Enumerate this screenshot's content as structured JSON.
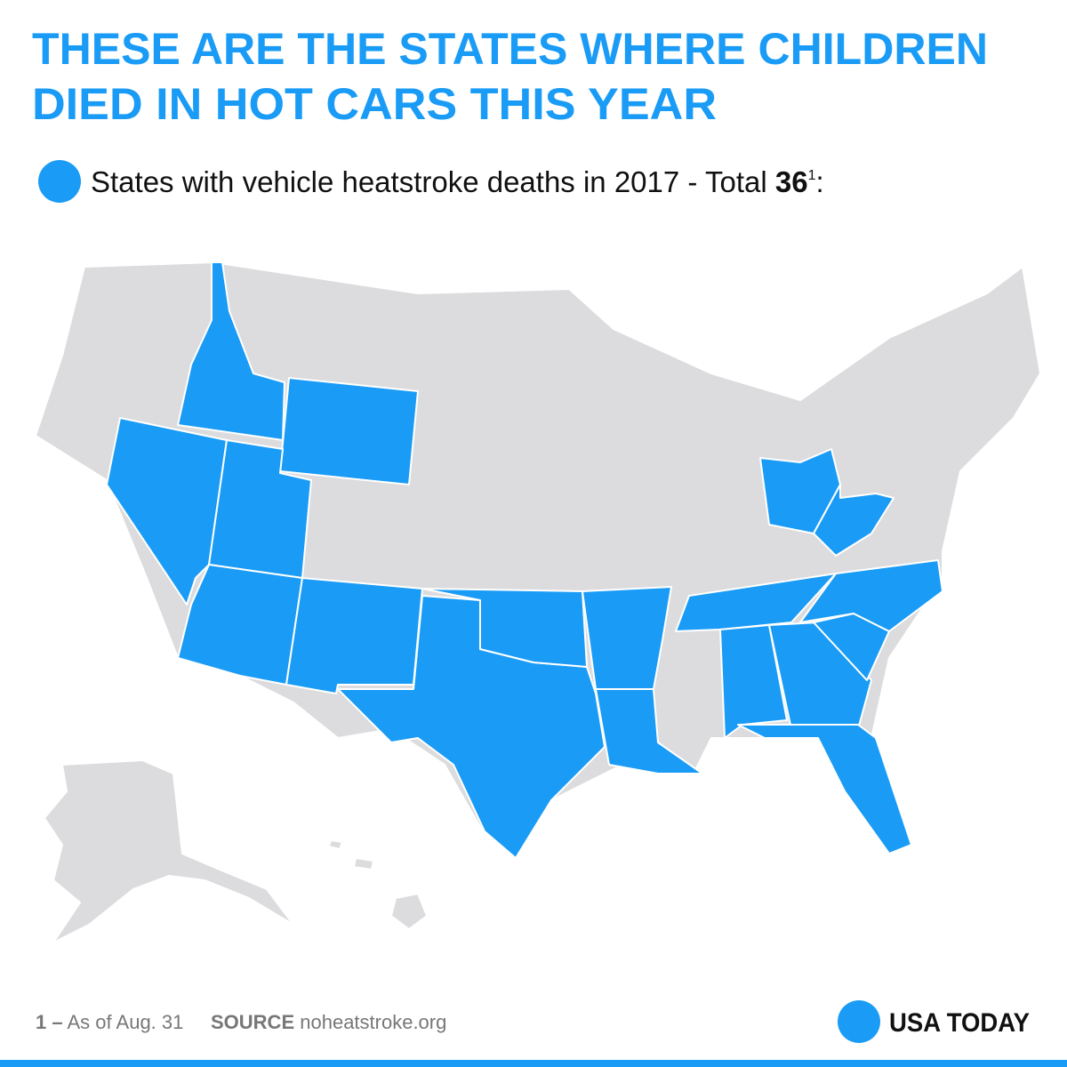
{
  "title_lines": [
    "THESE ARE THE STATES WHERE CHILDREN",
    "DIED IN HOT CARS THIS YEAR"
  ],
  "legend": {
    "label": "States with vehicle heatstroke deaths in 2017 - Total",
    "total": "36",
    "note_marker": "1",
    "suffix": ":"
  },
  "footnote": {
    "marker": "1 –",
    "text": "As of Aug. 31"
  },
  "source": {
    "label": "SOURCE",
    "text": "noheatstroke.org"
  },
  "brand": "USA TODAY"
}
